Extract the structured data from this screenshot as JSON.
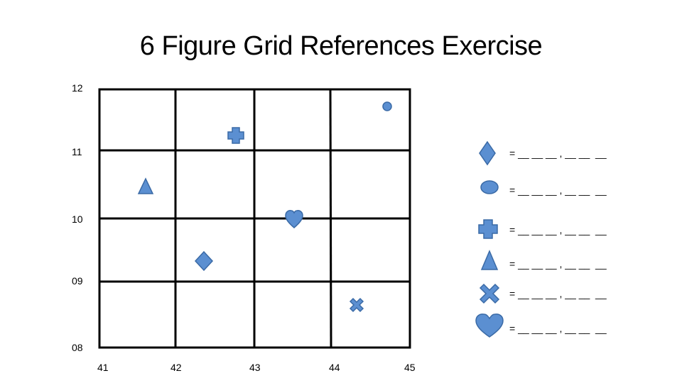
{
  "title": "6 Figure Grid References Exercise",
  "y_labels": [
    "12",
    "11",
    "10",
    "09",
    "08"
  ],
  "x_labels": [
    "41",
    "42",
    "43",
    "44",
    "45"
  ],
  "legend": [
    {
      "icon": "diamond-icon",
      "blank": "= __ __ __ , __ __  __"
    },
    {
      "icon": "circle-icon",
      "blank": "= __ __ __ , __ __  __"
    },
    {
      "icon": "cross-icon",
      "blank": "= __ __ __ , __ __  __"
    },
    {
      "icon": "triangle-icon",
      "blank": "= __ __ __ , __ __  __"
    },
    {
      "icon": "x-icon",
      "blank": "= __ __ __ , __ __  __"
    },
    {
      "icon": "heart-icon",
      "blank": "= __ __ __ , __ __  __"
    }
  ],
  "colors": {
    "shape_fill": "#5b8fd1",
    "shape_stroke": "#3a6aa6",
    "grid": "#000000"
  }
}
